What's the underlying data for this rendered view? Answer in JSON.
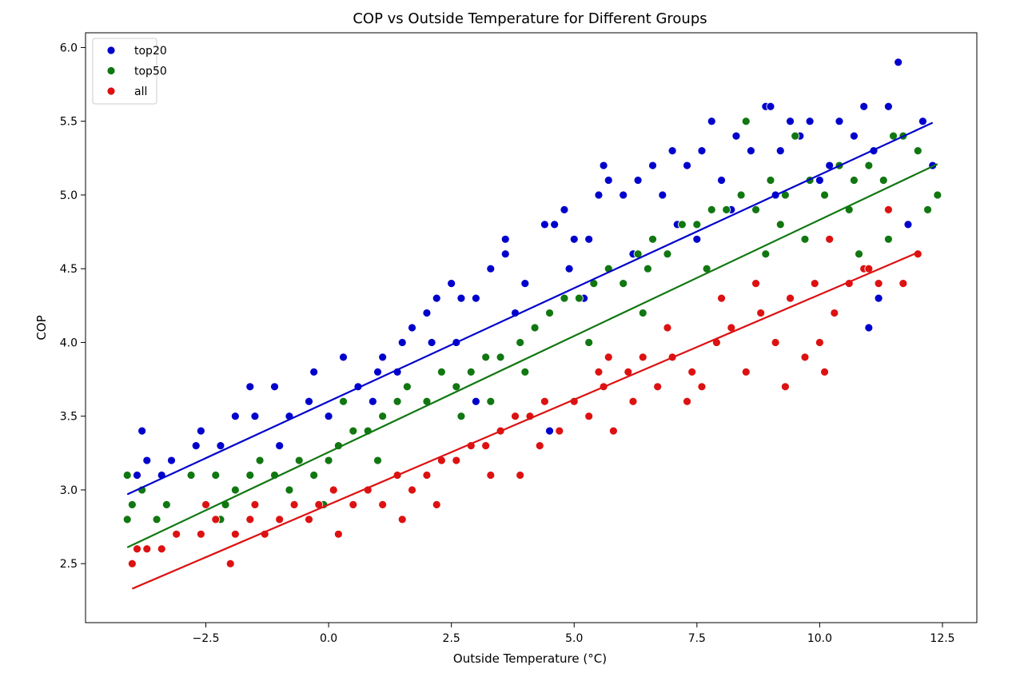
{
  "chart_data": {
    "type": "scatter",
    "title": "COP vs Outside Temperature for Different Groups",
    "xlabel": "Outside Temperature (°C)",
    "ylabel": "COP",
    "xlim": [
      -4.95,
      13.2
    ],
    "ylim": [
      2.1,
      6.1
    ],
    "x_ticks": [
      -2.5,
      0.0,
      2.5,
      5.0,
      7.5,
      10.0,
      12.5
    ],
    "x_tick_labels": [
      "−2.5",
      "0.0",
      "2.5",
      "5.0",
      "7.5",
      "10.0",
      "12.5"
    ],
    "y_ticks": [
      2.5,
      3.0,
      3.5,
      4.0,
      4.5,
      5.0,
      5.5,
      6.0
    ],
    "y_tick_labels": [
      "2.5",
      "3.0",
      "3.5",
      "4.0",
      "4.5",
      "5.0",
      "5.5",
      "6.0"
    ],
    "grid": false,
    "legend_position": "top-left",
    "series": [
      {
        "name": "top20",
        "color": "#0000cc",
        "x_range": [
          -4.1,
          12.3
        ],
        "fit": {
          "x": [
            -4.1,
            12.3
          ],
          "y": [
            2.97,
            5.49
          ]
        },
        "points": [
          [
            -3.9,
            3.1
          ],
          [
            -3.8,
            3.4
          ],
          [
            -3.7,
            3.2
          ],
          [
            -3.4,
            3.1
          ],
          [
            -3.2,
            3.2
          ],
          [
            -2.7,
            3.3
          ],
          [
            -2.6,
            3.4
          ],
          [
            -2.2,
            3.3
          ],
          [
            -1.9,
            3.5
          ],
          [
            -1.6,
            3.7
          ],
          [
            -1.5,
            3.5
          ],
          [
            -1.1,
            3.7
          ],
          [
            -0.8,
            3.5
          ],
          [
            -0.4,
            3.6
          ],
          [
            -0.3,
            3.8
          ],
          [
            0.3,
            3.9
          ],
          [
            0.6,
            3.7
          ],
          [
            1.0,
            3.8
          ],
          [
            1.1,
            3.9
          ],
          [
            1.5,
            4.0
          ],
          [
            1.7,
            4.1
          ],
          [
            2.0,
            4.2
          ],
          [
            2.2,
            4.3
          ],
          [
            2.5,
            4.4
          ],
          [
            2.7,
            4.3
          ],
          [
            3.0,
            4.3
          ],
          [
            3.3,
            4.5
          ],
          [
            3.6,
            4.6
          ],
          [
            3.6,
            4.7
          ],
          [
            4.0,
            4.4
          ],
          [
            4.4,
            4.8
          ],
          [
            4.6,
            4.8
          ],
          [
            4.8,
            4.9
          ],
          [
            5.0,
            4.7
          ],
          [
            5.3,
            4.7
          ],
          [
            5.5,
            5.0
          ],
          [
            5.6,
            5.2
          ],
          [
            5.7,
            5.1
          ],
          [
            6.0,
            5.0
          ],
          [
            6.3,
            5.1
          ],
          [
            6.6,
            5.2
          ],
          [
            6.8,
            5.0
          ],
          [
            7.0,
            5.3
          ],
          [
            7.3,
            5.2
          ],
          [
            7.6,
            5.3
          ],
          [
            7.8,
            5.5
          ],
          [
            8.0,
            5.1
          ],
          [
            8.3,
            5.4
          ],
          [
            8.6,
            5.3
          ],
          [
            8.9,
            5.6
          ],
          [
            9.0,
            5.6
          ],
          [
            9.2,
            5.3
          ],
          [
            9.4,
            5.5
          ],
          [
            9.6,
            5.4
          ],
          [
            9.8,
            5.5
          ],
          [
            10.2,
            5.2
          ],
          [
            10.4,
            5.5
          ],
          [
            10.7,
            5.4
          ],
          [
            10.9,
            5.6
          ],
          [
            11.1,
            5.3
          ],
          [
            11.4,
            5.6
          ],
          [
            11.6,
            5.9
          ],
          [
            11.8,
            4.8
          ],
          [
            12.1,
            5.5
          ],
          [
            12.3,
            5.2
          ],
          [
            -1.0,
            3.3
          ],
          [
            0.0,
            3.5
          ],
          [
            1.4,
            3.8
          ],
          [
            2.6,
            4.0
          ],
          [
            3.8,
            4.2
          ],
          [
            4.9,
            4.5
          ],
          [
            6.2,
            4.6
          ],
          [
            7.1,
            4.8
          ],
          [
            8.2,
            4.9
          ],
          [
            9.1,
            5.0
          ],
          [
            10.0,
            5.1
          ],
          [
            11.0,
            4.1
          ],
          [
            11.2,
            4.3
          ],
          [
            3.0,
            3.6
          ],
          [
            4.5,
            3.4
          ],
          [
            0.9,
            3.6
          ],
          [
            2.1,
            4.0
          ],
          [
            5.2,
            4.3
          ],
          [
            7.5,
            4.7
          ]
        ]
      },
      {
        "name": "top50",
        "color": "#117711",
        "x_range": [
          -4.1,
          12.4
        ],
        "fit": {
          "x": [
            -4.1,
            12.4
          ],
          "y": [
            2.61,
            5.21
          ]
        },
        "points": [
          [
            -4.1,
            3.1
          ],
          [
            -4.1,
            2.8
          ],
          [
            -4.0,
            2.9
          ],
          [
            -3.8,
            3.0
          ],
          [
            -3.5,
            2.8
          ],
          [
            -3.3,
            2.9
          ],
          [
            -2.8,
            3.1
          ],
          [
            -2.3,
            3.1
          ],
          [
            -2.1,
            2.9
          ],
          [
            -1.9,
            3.0
          ],
          [
            -1.6,
            3.1
          ],
          [
            -1.4,
            3.2
          ],
          [
            -1.1,
            3.1
          ],
          [
            -0.8,
            3.0
          ],
          [
            -0.6,
            3.2
          ],
          [
            -0.3,
            3.1
          ],
          [
            0.0,
            3.2
          ],
          [
            0.2,
            3.3
          ],
          [
            0.5,
            3.4
          ],
          [
            0.8,
            3.4
          ],
          [
            1.1,
            3.5
          ],
          [
            1.4,
            3.6
          ],
          [
            1.6,
            3.7
          ],
          [
            2.0,
            3.6
          ],
          [
            2.3,
            3.8
          ],
          [
            2.6,
            3.7
          ],
          [
            2.9,
            3.8
          ],
          [
            3.2,
            3.9
          ],
          [
            3.5,
            3.9
          ],
          [
            3.9,
            4.0
          ],
          [
            4.2,
            4.1
          ],
          [
            4.5,
            4.2
          ],
          [
            4.8,
            4.3
          ],
          [
            5.1,
            4.3
          ],
          [
            5.4,
            4.4
          ],
          [
            5.7,
            4.5
          ],
          [
            6.0,
            4.4
          ],
          [
            6.3,
            4.6
          ],
          [
            6.6,
            4.7
          ],
          [
            6.9,
            4.6
          ],
          [
            7.2,
            4.8
          ],
          [
            7.5,
            4.8
          ],
          [
            7.8,
            4.9
          ],
          [
            8.1,
            4.9
          ],
          [
            8.4,
            5.0
          ],
          [
            8.5,
            5.5
          ],
          [
            8.7,
            4.9
          ],
          [
            9.0,
            5.1
          ],
          [
            9.3,
            5.0
          ],
          [
            9.5,
            5.4
          ],
          [
            9.8,
            5.1
          ],
          [
            10.1,
            5.0
          ],
          [
            10.4,
            5.2
          ],
          [
            10.7,
            5.1
          ],
          [
            11.0,
            5.2
          ],
          [
            11.3,
            5.1
          ],
          [
            11.5,
            5.4
          ],
          [
            11.7,
            5.4
          ],
          [
            12.0,
            5.3
          ],
          [
            12.2,
            4.9
          ],
          [
            12.4,
            5.0
          ],
          [
            -0.1,
            2.9
          ],
          [
            1.0,
            3.2
          ],
          [
            2.7,
            3.5
          ],
          [
            4.0,
            3.8
          ],
          [
            5.3,
            4.0
          ],
          [
            6.4,
            4.2
          ],
          [
            7.7,
            4.5
          ],
          [
            8.9,
            4.6
          ],
          [
            9.7,
            4.7
          ],
          [
            10.8,
            4.6
          ],
          [
            11.4,
            4.7
          ],
          [
            -2.2,
            2.8
          ],
          [
            0.3,
            3.6
          ],
          [
            3.3,
            3.6
          ],
          [
            6.5,
            4.5
          ],
          [
            9.2,
            4.8
          ],
          [
            10.6,
            4.9
          ]
        ]
      },
      {
        "name": "all",
        "color": "#dd1111",
        "x_range": [
          -4.0,
          12.0
        ],
        "fit": {
          "x": [
            -4.0,
            12.0
          ],
          "y": [
            2.33,
            4.61
          ]
        },
        "points": [
          [
            -4.0,
            2.5
          ],
          [
            -3.9,
            2.6
          ],
          [
            -3.7,
            2.6
          ],
          [
            -3.4,
            2.6
          ],
          [
            -3.1,
            2.7
          ],
          [
            -2.6,
            2.7
          ],
          [
            -2.3,
            2.8
          ],
          [
            -2.0,
            2.5
          ],
          [
            -1.9,
            2.7
          ],
          [
            -1.6,
            2.8
          ],
          [
            -1.3,
            2.7
          ],
          [
            -1.0,
            2.8
          ],
          [
            -0.7,
            2.9
          ],
          [
            -0.4,
            2.8
          ],
          [
            -0.2,
            2.9
          ],
          [
            0.2,
            2.7
          ],
          [
            0.5,
            2.9
          ],
          [
            0.8,
            3.0
          ],
          [
            1.1,
            2.9
          ],
          [
            1.4,
            3.1
          ],
          [
            1.7,
            3.0
          ],
          [
            2.0,
            3.1
          ],
          [
            2.3,
            3.2
          ],
          [
            2.6,
            3.2
          ],
          [
            2.9,
            3.3
          ],
          [
            3.2,
            3.3
          ],
          [
            3.5,
            3.4
          ],
          [
            3.8,
            3.5
          ],
          [
            4.1,
            3.5
          ],
          [
            4.4,
            3.6
          ],
          [
            4.7,
            3.4
          ],
          [
            5.0,
            3.6
          ],
          [
            5.3,
            3.5
          ],
          [
            5.6,
            3.7
          ],
          [
            5.8,
            3.4
          ],
          [
            6.1,
            3.8
          ],
          [
            6.4,
            3.9
          ],
          [
            6.7,
            3.7
          ],
          [
            7.0,
            3.9
          ],
          [
            7.3,
            3.6
          ],
          [
            7.6,
            3.7
          ],
          [
            7.9,
            4.0
          ],
          [
            8.2,
            4.1
          ],
          [
            8.5,
            3.8
          ],
          [
            8.8,
            4.2
          ],
          [
            9.1,
            4.0
          ],
          [
            9.4,
            4.3
          ],
          [
            9.7,
            3.9
          ],
          [
            10.0,
            4.0
          ],
          [
            10.3,
            4.2
          ],
          [
            10.6,
            4.4
          ],
          [
            10.9,
            4.5
          ],
          [
            11.2,
            4.4
          ],
          [
            11.4,
            4.9
          ],
          [
            11.7,
            4.4
          ],
          [
            12.0,
            4.6
          ],
          [
            1.5,
            2.8
          ],
          [
            2.2,
            2.9
          ],
          [
            3.9,
            3.1
          ],
          [
            5.7,
            3.9
          ],
          [
            6.2,
            3.6
          ],
          [
            7.4,
            3.8
          ],
          [
            8.0,
            4.3
          ],
          [
            9.3,
            3.7
          ],
          [
            10.1,
            3.8
          ],
          [
            10.2,
            4.7
          ],
          [
            11.0,
            4.5
          ],
          [
            -1.5,
            2.9
          ],
          [
            0.1,
            3.0
          ],
          [
            4.3,
            3.3
          ],
          [
            6.9,
            4.1
          ],
          [
            8.7,
            4.4
          ],
          [
            9.9,
            4.4
          ],
          [
            -2.5,
            2.9
          ],
          [
            3.3,
            3.1
          ],
          [
            5.5,
            3.8
          ]
        ]
      }
    ]
  }
}
